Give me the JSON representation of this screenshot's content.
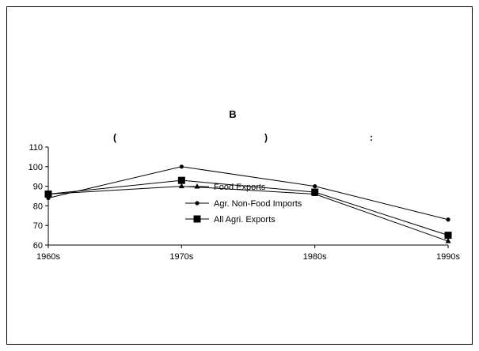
{
  "chart_data": {
    "type": "line",
    "title": "B",
    "subtitle_parts": [
      "(",
      ")",
      ":"
    ],
    "categories": [
      "1960s",
      "1970s",
      "1980s",
      "1990s"
    ],
    "ylim": [
      60,
      110
    ],
    "yticks": [
      60,
      70,
      80,
      90,
      100,
      110
    ],
    "grid": false,
    "legend_position": "inside-center",
    "series": [
      {
        "name": "Food Exports",
        "marker": "triangle",
        "values": [
          86,
          90,
          86,
          62
        ]
      },
      {
        "name": "Agr. Non-Food Imports",
        "marker": "circle",
        "values": [
          84,
          100,
          90,
          73
        ]
      },
      {
        "name": "All Agri. Exports",
        "marker": "square",
        "values": [
          86,
          93,
          87,
          65
        ]
      }
    ]
  }
}
